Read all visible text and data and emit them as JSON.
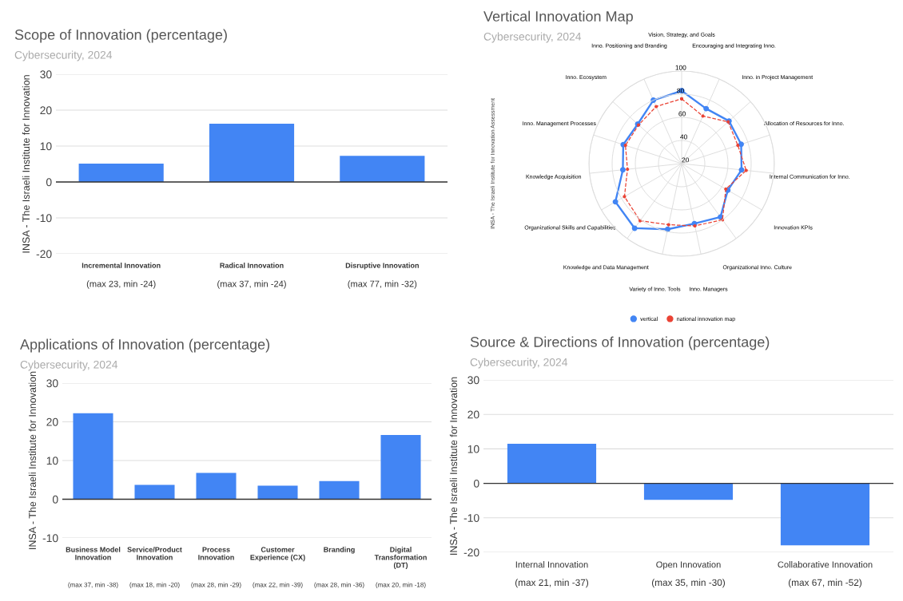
{
  "chart_data": [
    {
      "type": "bar",
      "title": "Scope of Innovation (percentage)",
      "subtitle": "Cybersecurity, 2024",
      "ylabel": "INSA - The Israeli Institute for Innovation",
      "categories": [
        "Incremental Innovation",
        "Radical Innovation",
        "Disruptive Innovation"
      ],
      "values": [
        5.1,
        16.2,
        7.3
      ],
      "color": "#4285f4",
      "ylim": [
        -20,
        30
      ],
      "yticks": [
        -20,
        -10,
        0,
        10,
        20,
        30
      ],
      "grid": "y",
      "annotations": [
        "(max 23, min -24)",
        "(max 37, min -24)",
        "(max 77, min -32)"
      ]
    },
    {
      "type": "radar",
      "title": "Vertical Innovation Map",
      "subtitle": "Cybersecurity, 2024",
      "ylabel": "INSA - The Israeli Institute for Innovation Assessment",
      "categories": [
        "Vision, Strategy, and Goals",
        "Encouraging and Integrating Inno.",
        "Inno. in Project Management",
        "Allocation of Resources for Inno.",
        "Internal Communication for Inno.",
        "Innovation KPIs",
        "Organizational Inno. Culture",
        "Inno. Managers",
        "Variety of Inno. Tools",
        "Knowledge and Data Management",
        "Organizational Skills and Capabilities",
        "Knowledge Acquisition",
        "Inno. Management Processes",
        "Inno. Ecosystem",
        "Inno. Positioning and Branding"
      ],
      "series": [
        {
          "name": "vertical",
          "color": "#4285f4",
          "line_style": "solid",
          "values": [
            83,
            72,
            75,
            74,
            72,
            66,
            77,
            73,
            78,
            89,
            86,
            71,
            73,
            71,
            80
          ]
        },
        {
          "name": "national innovation map",
          "color": "#ea4335",
          "line_style": "dashed",
          "values": [
            76,
            65,
            74,
            71,
            76,
            64,
            80,
            75,
            74,
            81,
            77,
            67,
            71,
            70,
            74
          ]
        }
      ],
      "ylim": [
        20,
        100
      ],
      "yticks": [
        20,
        40,
        60,
        80,
        100
      ],
      "grid": true,
      "legend": "bottom",
      "marker": "circle"
    },
    {
      "type": "bar",
      "title": "Applications of Innovation (percentage)",
      "subtitle": "Cybersecurity, 2024",
      "ylabel": "INSA - The Israeli Institute for Innovation",
      "categories": [
        "Business Model\nInnovation",
        "Service/Product\nInnovation",
        "Process\nInnovation",
        "Customer\nExperience (CX)",
        "Branding",
        "Digital\nTransformation\n(DT)"
      ],
      "values": [
        22.2,
        3.7,
        6.8,
        3.5,
        4.7,
        16.6
      ],
      "color": "#4285f4",
      "ylim": [
        -10,
        30
      ],
      "yticks": [
        -10,
        0,
        10,
        20,
        30
      ],
      "grid": "y",
      "annotations": [
        "(max 37, min -38)",
        "(max 18, min -20)",
        "(max 28, min -29)",
        "(max 22, min -39)",
        "(max 28, min -36)",
        "(max 20, min -18)"
      ]
    },
    {
      "type": "bar",
      "title": "Source & Directions of Innovation (percentage)",
      "subtitle": "Cybersecurity, 2024",
      "ylabel": "INSA - The Israeli Institute for Innovation",
      "categories": [
        "Internal Innovation",
        "Open Innovation",
        "Collaborative Innovation"
      ],
      "values": [
        11.5,
        -4.8,
        -18.0
      ],
      "color": "#4285f4",
      "ylim": [
        -20,
        30
      ],
      "yticks": [
        -20,
        -10,
        0,
        10,
        20,
        30
      ],
      "grid": "y",
      "annotations": [
        "(max 21, min -37)",
        "(max 35, min -30)",
        "(max 67, min -52)"
      ]
    }
  ]
}
